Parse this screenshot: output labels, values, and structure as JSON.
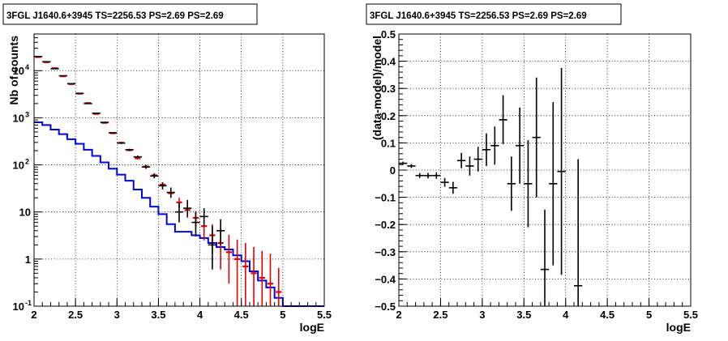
{
  "chart_data": [
    {
      "type": "line",
      "title": "3FGL J1640.6+3945 TS=2256.53 PS=2.69 PS=2.69",
      "xlabel": "logE",
      "ylabel": "Nb of counts",
      "xlim": [
        2,
        5.5
      ],
      "ylim": [
        0.1,
        60000
      ],
      "yscale": "log",
      "grid": true,
      "xticks": [
        "2",
        "2.5",
        "3",
        "3.5",
        "4",
        "4.5",
        "5",
        "5.5"
      ],
      "yticks": [
        {
          "v": 0.1,
          "label": "10",
          "exp": "-1"
        },
        {
          "v": 1,
          "label": "1",
          "exp": ""
        },
        {
          "v": 10,
          "label": "10",
          "exp": ""
        },
        {
          "v": 100,
          "label": "10",
          "exp": "2"
        },
        {
          "v": 1000,
          "label": "10",
          "exp": "3"
        },
        {
          "v": 10000,
          "label": "10",
          "exp": "4"
        }
      ],
      "bin_width": 0.1,
      "colors": {
        "data": "#000000",
        "model": "#e00000",
        "background": "#0000e0"
      },
      "series": [
        {
          "role": "data",
          "x": [
            2.05,
            2.15,
            2.25,
            2.35,
            2.45,
            2.55,
            2.65,
            2.75,
            2.85,
            2.95,
            3.05,
            3.15,
            3.25,
            3.35,
            3.45,
            3.55,
            3.65,
            3.75,
            3.85,
            3.95,
            4.05,
            4.15,
            4.25
          ],
          "y": [
            20000,
            15500,
            11000,
            7800,
            5300,
            3300,
            2000,
            1250,
            800,
            480,
            290,
            210,
            148,
            90,
            58,
            36,
            26,
            10,
            12,
            6,
            8,
            2,
            4
          ],
          "ylow": [
            19700,
            15300,
            10800,
            7650,
            5200,
            3250,
            1960,
            1220,
            780,
            465,
            278,
            200,
            140,
            82,
            52,
            30,
            20,
            6,
            8,
            3,
            5,
            0.6,
            2
          ],
          "yhigh": [
            20300,
            15700,
            11200,
            7950,
            5400,
            3350,
            2040,
            1280,
            820,
            495,
            302,
            220,
            158,
            100,
            66,
            42,
            33,
            16,
            18,
            10,
            12,
            5,
            7
          ]
        },
        {
          "role": "model",
          "x": [
            2.05,
            2.15,
            2.25,
            2.35,
            2.45,
            2.55,
            2.65,
            2.75,
            2.85,
            2.95,
            3.05,
            3.15,
            3.25,
            3.35,
            3.45,
            3.55,
            3.65,
            3.75,
            3.85,
            3.95,
            4.05,
            4.15,
            4.25,
            4.35,
            4.45,
            4.55,
            4.65,
            4.75,
            4.85,
            4.95
          ],
          "y": [
            19500,
            15100,
            11300,
            7600,
            5200,
            3250,
            2060,
            1210,
            780,
            470,
            295,
            205,
            138,
            92,
            60,
            38,
            25,
            16,
            11,
            7.5,
            5,
            3.2,
            2.2,
            1.4,
            1,
            0.7,
            0.5,
            0.4,
            0.3,
            0.2
          ],
          "ylow": [
            19300,
            14900,
            11100,
            7450,
            5100,
            3180,
            2010,
            1180,
            760,
            455,
            285,
            195,
            130,
            85,
            54,
            33,
            20,
            12,
            7.5,
            4.5,
            2.5,
            1.3,
            0.6,
            0.3,
            0.1,
            0.1,
            0.1,
            0.1,
            0.1,
            0.1
          ],
          "yhigh": [
            19700,
            15300,
            11500,
            7750,
            5300,
            3320,
            2110,
            1240,
            800,
            485,
            305,
            215,
            146,
            99,
            66,
            43,
            30,
            20,
            14.5,
            10.5,
            7.5,
            5.5,
            4.5,
            3.3,
            2.6,
            2.2,
            1.8,
            1.5,
            1.3,
            0.65
          ]
        },
        {
          "role": "background",
          "x": [
            2.05,
            2.15,
            2.25,
            2.35,
            2.45,
            2.55,
            2.65,
            2.75,
            2.85,
            2.95,
            3.05,
            3.15,
            3.25,
            3.35,
            3.45,
            3.55,
            3.65,
            3.75,
            3.85,
            3.95,
            4.05,
            4.15,
            4.25,
            4.35,
            4.45,
            4.55,
            4.65,
            4.75,
            4.85,
            4.95,
            5.05,
            5.15,
            5.25,
            5.35,
            5.45
          ],
          "y": [
            800,
            700,
            560,
            450,
            350,
            280,
            210,
            155,
            113,
            83,
            62,
            46,
            30,
            20,
            13,
            9,
            5.5,
            3.8,
            3.8,
            3.2,
            2.8,
            2.2,
            1.8,
            1.6,
            1.2,
            0.9,
            0.55,
            0.35,
            0.25,
            0.15,
            0.1,
            0.1,
            0.1,
            0.1,
            0.1
          ]
        }
      ]
    },
    {
      "type": "scatter",
      "title": "3FGL J1640.6+3945 TS=2256.53 PS=2.69 PS=2.69",
      "xlabel": "logE",
      "ylabel": "(data-model)/model",
      "xlim": [
        2,
        5.5
      ],
      "ylim": [
        -0.5,
        0.5
      ],
      "grid": true,
      "xticks": [
        "2",
        "2.5",
        "3",
        "3.5",
        "4",
        "4.5",
        "5",
        "5.5"
      ],
      "yticks": [
        "−0.5",
        "−0.4",
        "−0.3",
        "−0.2",
        "−0.1",
        "0",
        "0.1",
        "0.2",
        "0.3",
        "0.4",
        "0.5"
      ],
      "bin_width": 0.1,
      "points": {
        "x": [
          2.05,
          2.15,
          2.25,
          2.35,
          2.45,
          2.55,
          2.65,
          2.75,
          2.85,
          2.95,
          3.05,
          3.15,
          3.25,
          3.35,
          3.45,
          3.55,
          3.65,
          3.75,
          3.85,
          3.95,
          4.15
        ],
        "y": [
          0.025,
          0.015,
          -0.02,
          -0.02,
          -0.02,
          -0.045,
          -0.065,
          0.035,
          0.015,
          0.04,
          0.075,
          0.09,
          0.185,
          -0.05,
          0.09,
          -0.05,
          0.12,
          -0.365,
          -0.05,
          -0.005,
          -0.425
        ],
        "err": [
          0.006,
          0.007,
          0.009,
          0.01,
          0.012,
          0.016,
          0.022,
          0.028,
          0.035,
          0.045,
          0.06,
          0.07,
          0.09,
          0.1,
          0.14,
          0.16,
          0.22,
          0.22,
          0.3,
          0.38,
          0.465
        ]
      }
    }
  ]
}
